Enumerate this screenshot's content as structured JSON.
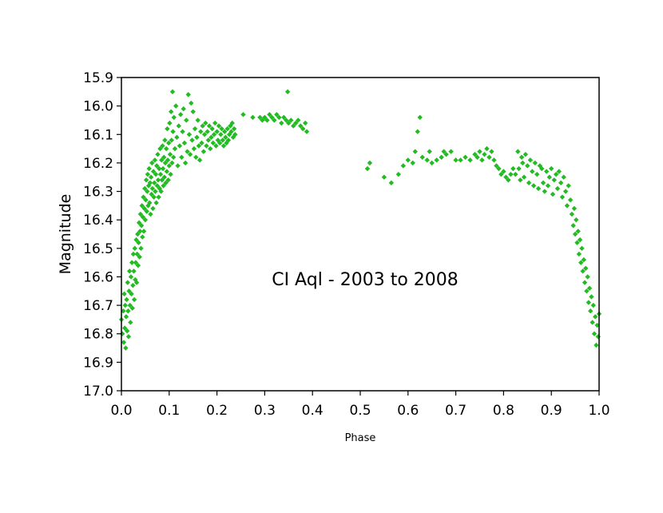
{
  "chart_data": {
    "type": "scatter",
    "xlabel": "Phase",
    "ylabel": "Magnitude",
    "annotation": "CI Aql - 2003 to 2008",
    "xlim": [
      0.0,
      1.0
    ],
    "ylim": [
      15.9,
      17.0
    ],
    "y_inverted": true,
    "x_ticks": [
      "0.0",
      "0.1",
      "0.2",
      "0.3",
      "0.4",
      "0.5",
      "0.6",
      "0.7",
      "0.8",
      "0.9",
      "1.0"
    ],
    "y_ticks": [
      "15.9",
      "16.0",
      "16.1",
      "16.2",
      "16.3",
      "16.4",
      "16.5",
      "16.6",
      "16.7",
      "16.8",
      "16.9",
      "17.0"
    ],
    "grid": false,
    "marker": "diamond",
    "color": "#22bb22",
    "series": [
      {
        "points": [
          [
            0.0,
            16.75
          ],
          [
            0.002,
            16.8
          ],
          [
            0.004,
            16.72
          ],
          [
            0.005,
            16.83
          ],
          [
            0.006,
            16.66
          ],
          [
            0.007,
            16.78
          ],
          [
            0.008,
            16.7
          ],
          [
            0.009,
            16.85
          ],
          [
            0.01,
            16.74
          ],
          [
            0.011,
            16.68
          ],
          [
            0.012,
            16.79
          ],
          [
            0.013,
            16.62
          ],
          [
            0.014,
            16.72
          ],
          [
            0.015,
            16.81
          ],
          [
            0.016,
            16.65
          ],
          [
            0.017,
            16.58
          ],
          [
            0.018,
            16.7
          ],
          [
            0.019,
            16.76
          ],
          [
            0.02,
            16.6
          ],
          [
            0.021,
            16.66
          ],
          [
            0.022,
            16.55
          ],
          [
            0.023,
            16.71
          ],
          [
            0.024,
            16.63
          ],
          [
            0.025,
            16.52
          ],
          [
            0.026,
            16.58
          ],
          [
            0.027,
            16.68
          ],
          [
            0.028,
            16.5
          ],
          [
            0.029,
            16.61
          ],
          [
            0.03,
            16.55
          ],
          [
            0.031,
            16.47
          ],
          [
            0.032,
            16.62
          ],
          [
            0.033,
            16.52
          ],
          [
            0.034,
            16.45
          ],
          [
            0.035,
            16.56
          ],
          [
            0.036,
            16.48
          ],
          [
            0.037,
            16.41
          ],
          [
            0.038,
            16.53
          ],
          [
            0.039,
            16.44
          ],
          [
            0.04,
            16.38
          ],
          [
            0.041,
            16.5
          ],
          [
            0.042,
            16.42
          ],
          [
            0.043,
            16.35
          ],
          [
            0.044,
            16.46
          ],
          [
            0.045,
            16.39
          ],
          [
            0.046,
            16.32
          ],
          [
            0.047,
            16.44
          ],
          [
            0.048,
            16.36
          ],
          [
            0.049,
            16.29
          ],
          [
            0.05,
            16.4
          ],
          [
            0.051,
            16.33
          ],
          [
            0.052,
            16.26
          ],
          [
            0.053,
            16.37
          ],
          [
            0.054,
            16.3
          ],
          [
            0.055,
            16.24
          ],
          [
            0.056,
            16.35
          ],
          [
            0.057,
            16.28
          ],
          [
            0.058,
            16.22
          ],
          [
            0.059,
            16.34
          ],
          [
            0.06,
            16.27
          ],
          [
            0.061,
            16.38
          ],
          [
            0.062,
            16.25
          ],
          [
            0.063,
            16.31
          ],
          [
            0.064,
            16.2
          ],
          [
            0.065,
            16.29
          ],
          [
            0.066,
            16.36
          ],
          [
            0.067,
            16.23
          ],
          [
            0.068,
            16.32
          ],
          [
            0.069,
            16.27
          ],
          [
            0.07,
            16.19
          ],
          [
            0.071,
            16.3
          ],
          [
            0.072,
            16.24
          ],
          [
            0.073,
            16.34
          ],
          [
            0.074,
            16.21
          ],
          [
            0.075,
            16.28
          ],
          [
            0.076,
            16.17
          ],
          [
            0.077,
            16.26
          ],
          [
            0.078,
            16.32
          ],
          [
            0.079,
            16.22
          ],
          [
            0.08,
            16.29
          ],
          [
            0.081,
            16.15
          ],
          [
            0.082,
            16.24
          ],
          [
            0.083,
            16.3
          ],
          [
            0.084,
            16.19
          ],
          [
            0.085,
            16.26
          ],
          [
            0.086,
            16.14
          ],
          [
            0.087,
            16.22
          ],
          [
            0.088,
            16.28
          ],
          [
            0.089,
            16.18
          ],
          [
            0.09,
            16.25
          ],
          [
            0.091,
            16.12
          ],
          [
            0.092,
            16.2
          ],
          [
            0.093,
            16.27
          ],
          [
            0.094,
            16.15
          ],
          [
            0.095,
            16.23
          ],
          [
            0.096,
            16.08
          ],
          [
            0.097,
            16.19
          ],
          [
            0.098,
            16.26
          ],
          [
            0.099,
            16.13
          ],
          [
            0.1,
            16.21
          ],
          [
            0.101,
            16.06
          ],
          [
            0.102,
            16.17
          ],
          [
            0.103,
            16.24
          ],
          [
            0.104,
            16.02
          ],
          [
            0.105,
            16.12
          ],
          [
            0.106,
            16.2
          ],
          [
            0.107,
            15.95
          ],
          [
            0.108,
            16.09
          ],
          [
            0.109,
            16.18
          ],
          [
            0.11,
            16.04
          ],
          [
            0.112,
            16.15
          ],
          [
            0.114,
            16.0
          ],
          [
            0.116,
            16.11
          ],
          [
            0.118,
            16.21
          ],
          [
            0.12,
            16.07
          ],
          [
            0.122,
            16.14
          ],
          [
            0.124,
            16.03
          ],
          [
            0.126,
            16.18
          ],
          [
            0.128,
            16.09
          ],
          [
            0.13,
            16.01
          ],
          [
            0.132,
            16.13
          ],
          [
            0.134,
            16.2
          ],
          [
            0.136,
            16.05
          ],
          [
            0.138,
            16.16
          ],
          [
            0.14,
            15.96
          ],
          [
            0.142,
            16.1
          ],
          [
            0.144,
            16.17
          ],
          [
            0.146,
            15.99
          ],
          [
            0.148,
            16.12
          ],
          [
            0.15,
            16.02
          ],
          [
            0.152,
            16.15
          ],
          [
            0.154,
            16.08
          ],
          [
            0.156,
            16.18
          ],
          [
            0.158,
            16.11
          ],
          [
            0.16,
            16.05
          ],
          [
            0.162,
            16.14
          ],
          [
            0.164,
            16.19
          ],
          [
            0.166,
            16.09
          ],
          [
            0.168,
            16.13
          ],
          [
            0.17,
            16.07
          ],
          [
            0.172,
            16.16
          ],
          [
            0.174,
            16.1
          ],
          [
            0.176,
            16.06
          ],
          [
            0.178,
            16.14
          ],
          [
            0.18,
            16.09
          ],
          [
            0.182,
            16.12
          ],
          [
            0.184,
            16.07
          ],
          [
            0.186,
            16.15
          ],
          [
            0.188,
            16.11
          ],
          [
            0.19,
            16.08
          ],
          [
            0.192,
            16.13
          ],
          [
            0.194,
            16.1
          ],
          [
            0.196,
            16.06
          ],
          [
            0.198,
            16.14
          ],
          [
            0.2,
            16.09
          ],
          [
            0.202,
            16.12
          ],
          [
            0.204,
            16.07
          ],
          [
            0.206,
            16.13
          ],
          [
            0.208,
            16.1
          ],
          [
            0.21,
            16.08
          ],
          [
            0.212,
            16.12
          ],
          [
            0.214,
            16.14
          ],
          [
            0.216,
            16.09
          ],
          [
            0.218,
            16.11
          ],
          [
            0.22,
            16.13
          ],
          [
            0.222,
            16.08
          ],
          [
            0.224,
            16.12
          ],
          [
            0.226,
            16.1
          ],
          [
            0.228,
            16.07
          ],
          [
            0.23,
            16.09
          ],
          [
            0.232,
            16.06
          ],
          [
            0.234,
            16.11
          ],
          [
            0.236,
            16.08
          ],
          [
            0.238,
            16.1
          ],
          [
            0.255,
            16.03
          ],
          [
            0.275,
            16.04
          ],
          [
            0.29,
            16.04
          ],
          [
            0.295,
            16.05
          ],
          [
            0.3,
            16.04
          ],
          [
            0.305,
            16.05
          ],
          [
            0.31,
            16.03
          ],
          [
            0.315,
            16.04
          ],
          [
            0.32,
            16.05
          ],
          [
            0.325,
            16.03
          ],
          [
            0.33,
            16.04
          ],
          [
            0.335,
            16.06
          ],
          [
            0.34,
            16.04
          ],
          [
            0.345,
            16.05
          ],
          [
            0.348,
            15.95
          ],
          [
            0.35,
            16.06
          ],
          [
            0.355,
            16.05
          ],
          [
            0.36,
            16.07
          ],
          [
            0.365,
            16.06
          ],
          [
            0.37,
            16.05
          ],
          [
            0.375,
            16.07
          ],
          [
            0.38,
            16.08
          ],
          [
            0.385,
            16.06
          ],
          [
            0.388,
            16.09
          ],
          [
            0.515,
            16.22
          ],
          [
            0.52,
            16.2
          ],
          [
            0.55,
            16.25
          ],
          [
            0.565,
            16.27
          ],
          [
            0.58,
            16.24
          ],
          [
            0.59,
            16.21
          ],
          [
            0.6,
            16.19
          ],
          [
            0.61,
            16.2
          ],
          [
            0.615,
            16.16
          ],
          [
            0.62,
            16.09
          ],
          [
            0.625,
            16.04
          ],
          [
            0.63,
            16.18
          ],
          [
            0.64,
            16.19
          ],
          [
            0.645,
            16.16
          ],
          [
            0.65,
            16.2
          ],
          [
            0.66,
            16.19
          ],
          [
            0.67,
            16.18
          ],
          [
            0.675,
            16.16
          ],
          [
            0.68,
            16.17
          ],
          [
            0.69,
            16.16
          ],
          [
            0.7,
            16.19
          ],
          [
            0.71,
            16.19
          ],
          [
            0.72,
            16.18
          ],
          [
            0.73,
            16.19
          ],
          [
            0.74,
            16.17
          ],
          [
            0.745,
            16.18
          ],
          [
            0.75,
            16.16
          ],
          [
            0.755,
            16.19
          ],
          [
            0.76,
            16.17
          ],
          [
            0.765,
            16.15
          ],
          [
            0.77,
            16.18
          ],
          [
            0.775,
            16.16
          ],
          [
            0.78,
            16.19
          ],
          [
            0.785,
            16.21
          ],
          [
            0.79,
            16.22
          ],
          [
            0.795,
            16.24
          ],
          [
            0.8,
            16.23
          ],
          [
            0.805,
            16.25
          ],
          [
            0.81,
            16.26
          ],
          [
            0.815,
            16.24
          ],
          [
            0.82,
            16.22
          ],
          [
            0.825,
            16.24
          ],
          [
            0.83,
            16.16
          ],
          [
            0.832,
            16.22
          ],
          [
            0.835,
            16.26
          ],
          [
            0.838,
            16.18
          ],
          [
            0.84,
            16.2
          ],
          [
            0.843,
            16.25
          ],
          [
            0.846,
            16.17
          ],
          [
            0.85,
            16.21
          ],
          [
            0.853,
            16.27
          ],
          [
            0.856,
            16.19
          ],
          [
            0.86,
            16.23
          ],
          [
            0.863,
            16.28
          ],
          [
            0.866,
            16.2
          ],
          [
            0.87,
            16.24
          ],
          [
            0.873,
            16.29
          ],
          [
            0.876,
            16.21
          ],
          [
            0.88,
            16.22
          ],
          [
            0.883,
            16.27
          ],
          [
            0.886,
            16.3
          ],
          [
            0.89,
            16.23
          ],
          [
            0.893,
            16.28
          ],
          [
            0.896,
            16.25
          ],
          [
            0.9,
            16.22
          ],
          [
            0.903,
            16.31
          ],
          [
            0.906,
            16.26
          ],
          [
            0.91,
            16.24
          ],
          [
            0.913,
            16.29
          ],
          [
            0.916,
            16.23
          ],
          [
            0.92,
            16.27
          ],
          [
            0.923,
            16.32
          ],
          [
            0.926,
            16.25
          ],
          [
            0.93,
            16.3
          ],
          [
            0.933,
            16.35
          ],
          [
            0.936,
            16.28
          ],
          [
            0.94,
            16.33
          ],
          [
            0.943,
            16.38
          ],
          [
            0.946,
            16.42
          ],
          [
            0.948,
            16.36
          ],
          [
            0.95,
            16.45
          ],
          [
            0.952,
            16.4
          ],
          [
            0.954,
            16.48
          ],
          [
            0.956,
            16.44
          ],
          [
            0.958,
            16.52
          ],
          [
            0.96,
            16.47
          ],
          [
            0.962,
            16.55
          ],
          [
            0.964,
            16.5
          ],
          [
            0.966,
            16.58
          ],
          [
            0.968,
            16.54
          ],
          [
            0.97,
            16.62
          ],
          [
            0.972,
            16.57
          ],
          [
            0.974,
            16.65
          ],
          [
            0.976,
            16.6
          ],
          [
            0.978,
            16.69
          ],
          [
            0.98,
            16.64
          ],
          [
            0.982,
            16.72
          ],
          [
            0.984,
            16.67
          ],
          [
            0.986,
            16.76
          ],
          [
            0.988,
            16.7
          ],
          [
            0.99,
            16.8
          ],
          [
            0.992,
            16.74
          ],
          [
            0.994,
            16.84
          ],
          [
            0.996,
            16.77
          ],
          [
            0.998,
            16.81
          ],
          [
            1.0,
            16.73
          ]
        ]
      }
    ]
  }
}
